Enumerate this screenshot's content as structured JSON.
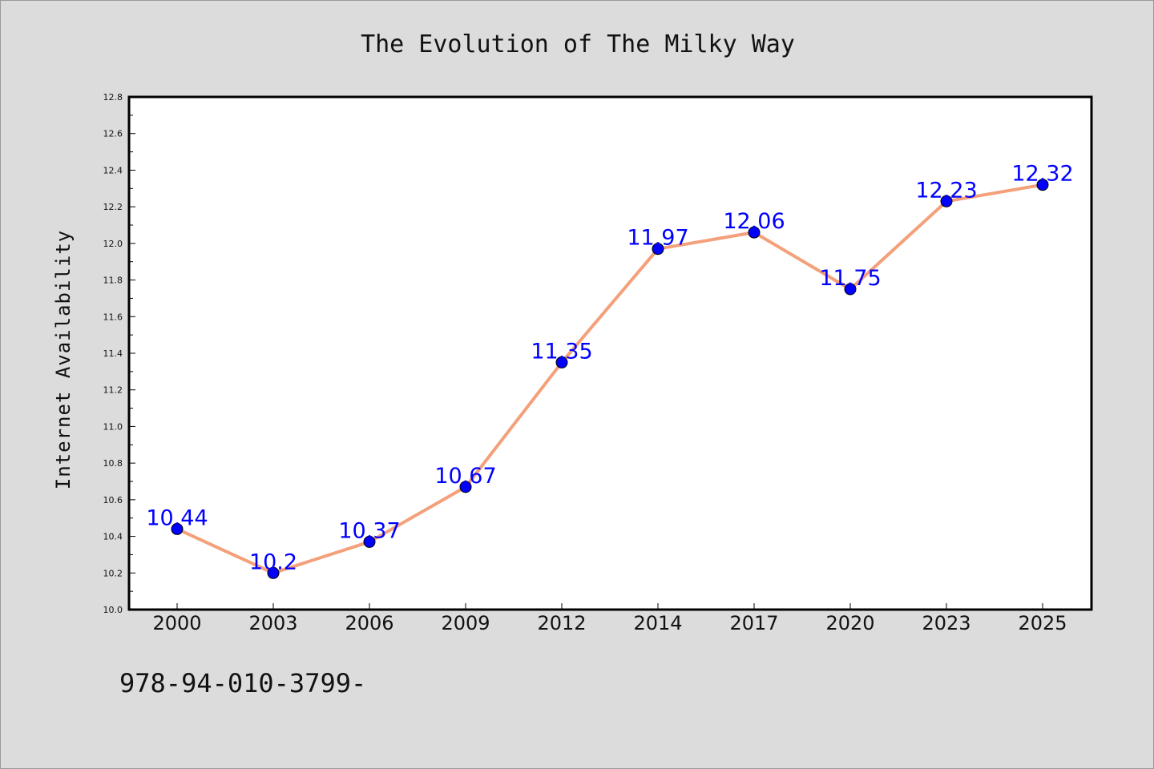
{
  "chart_data": {
    "type": "line",
    "title": "The Evolution of The Milky Way",
    "xlabel": "",
    "ylabel": "Internet Availability",
    "categories": [
      "2000",
      "2003",
      "2006",
      "2009",
      "2012",
      "2014",
      "2017",
      "2020",
      "2023",
      "2025"
    ],
    "series": [
      {
        "values": [
          10.44,
          10.2,
          10.37,
          10.67,
          11.35,
          11.97,
          12.06,
          11.75,
          12.23,
          12.32
        ],
        "data_labels": [
          "10.44",
          "10.2",
          "10.37",
          "10.67",
          "11.35",
          "11.97",
          "12.06",
          "11.75",
          "12.23",
          "12.32"
        ],
        "line_color": "#f4a07a",
        "marker_color": "#0000ff"
      }
    ],
    "ylim": [
      10.0,
      12.8
    ],
    "yticks": [
      10.0,
      10.2,
      10.4,
      10.6,
      10.8,
      11.0,
      11.2,
      11.4,
      11.6,
      11.8,
      12.0,
      12.2,
      12.4,
      12.6,
      12.8
    ],
    "ytick_labels": [
      "10.0",
      "10.2",
      "10.4",
      "10.6",
      "10.8",
      "11.0",
      "11.2",
      "11.4",
      "11.6",
      "11.8",
      "12.0",
      "12.2",
      "12.4",
      "12.6",
      "12.8"
    ],
    "grid": false,
    "background_color": "#dcdcdc",
    "plot_background_color": "#ffffff"
  },
  "footer": {
    "code_text": "978-94-010-3799-"
  }
}
